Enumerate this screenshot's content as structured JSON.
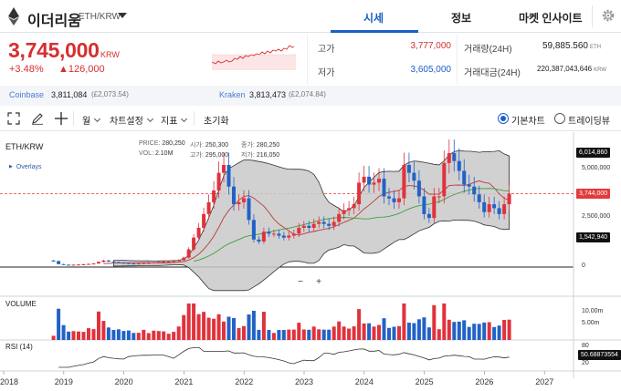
{
  "header": {
    "coin_name": "이더리움",
    "pair": "ETH/KRW",
    "tabs": [
      {
        "label": "시세",
        "active": true
      },
      {
        "label": "정보",
        "active": false
      },
      {
        "label": "마켓 인사이트",
        "active": false
      }
    ]
  },
  "price": {
    "value": "3,745,000",
    "unit": "KRW",
    "change_pct": "+3.48%",
    "change_amt": "▲126,000"
  },
  "stats": {
    "high_label": "고가",
    "high_value": "3,777,000",
    "low_label": "저가",
    "low_value": "3,605,000",
    "volume_label": "거래량(24H)",
    "volume_value": "59,885.560",
    "volume_unit": "ETH",
    "amount_label": "거래대금(24H)",
    "amount_value": "220,387,043,646",
    "amount_unit": "KRW"
  },
  "exchanges": [
    {
      "name": "Coinbase",
      "value": "3,811,084",
      "sub": "(£2,073.54)"
    },
    {
      "name": "Kraken",
      "value": "3,813,473",
      "sub": "(£2,074.84)"
    }
  ],
  "toolbar": {
    "interval": "월",
    "chart_settings": "차트설정",
    "indicators": "지표",
    "reset": "초기화",
    "basic_chart": "기본차트",
    "tradingview": "트레이딩뷰"
  },
  "chart": {
    "title": "ETH/KRW",
    "overlays_label": "Overlays",
    "info": {
      "price_k": "PRICE:",
      "price_v": "280,250",
      "open_k": "시가:",
      "open_v": "250,300",
      "close_k": "종가:",
      "close_v": "280,250",
      "vol_k": "VOL:",
      "vol_v": "2.10M",
      "high_k": "고가:",
      "high_v": "295,000",
      "low_k": "저가:",
      "low_v": "216,050"
    },
    "volume_label": "VOLUME",
    "rsi_label": "RSI (14)",
    "price_tags": {
      "upper": "6,014,860",
      "current": "3,744,000",
      "lower": "1,542,940",
      "rsi": "50.68873554"
    },
    "y_axis": [
      "5,000,000",
      "2,500,000",
      "0"
    ],
    "vol_axis": [
      "10.00m",
      "5.00m"
    ],
    "rsi_axis": [
      "80",
      "20"
    ],
    "x_axis": [
      "2018",
      "2019",
      "2020",
      "2021",
      "2022",
      "2023",
      "2024",
      "2025",
      "2026",
      "2027"
    ],
    "zoom_out": "−",
    "zoom_in": "+",
    "colors": {
      "up": "#e0323c",
      "down": "#2262c6",
      "band": "#c9c9c9",
      "ma_red": "#b83b3b",
      "ma_green": "#3aa03a"
    }
  },
  "chart_data": {
    "type": "candlestick",
    "title": "ETH/KRW",
    "interval": "monthly",
    "x": [
      "2018",
      "2019",
      "2020",
      "2021",
      "2022",
      "2023",
      "2024",
      "2025",
      "2026",
      "2027"
    ],
    "ylim": [
      0,
      6500000
    ],
    "series_note": "approximate monthly closes read from chart",
    "closes": [
      300000,
      150000,
      120000,
      110000,
      120000,
      130000,
      140000,
      160000,
      180000,
      260000,
      330000,
      280000,
      250000,
      220000,
      200000,
      180000,
      170000,
      180000,
      200000,
      210000,
      230000,
      250000,
      270000,
      280000,
      300000,
      350000,
      480000,
      900000,
      1500000,
      2000000,
      2700000,
      3300000,
      3900000,
      4800000,
      5200000,
      4100000,
      3200000,
      3300000,
      3500000,
      2400000,
      1400000,
      1300000,
      1800000,
      1700000,
      1700000,
      1600000,
      1500000,
      1600000,
      1700000,
      2000000,
      2100000,
      2000000,
      2200000,
      2300000,
      2200000,
      2100000,
      2300000,
      2700000,
      2900000,
      3000000,
      3200000,
      4300000,
      4600000,
      4200000,
      4300000,
      4500000,
      3600000,
      3500000,
      3300000,
      3500000,
      5200000,
      4800000,
      4400000,
      3600000,
      2700000,
      2500000,
      3600000,
      3600000,
      5300000,
      5800000,
      5400000,
      4900000,
      4200000,
      4100000,
      3700000,
      3300000,
      2800000,
      3200000,
      3000000,
      2700000,
      3200000,
      3744000
    ]
  }
}
